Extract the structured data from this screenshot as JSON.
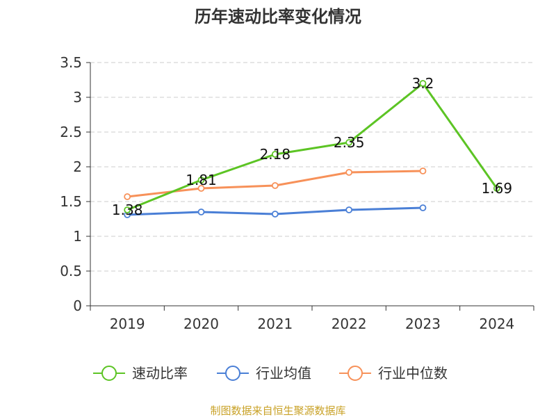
{
  "chart_data": {
    "type": "line",
    "title": "历年速动比率变化情况",
    "categories": [
      "2019",
      "2020",
      "2021",
      "2022",
      "2023",
      "2024"
    ],
    "ylim": [
      0,
      3.5
    ],
    "yticks": [
      "0",
      "0.5",
      "1",
      "1.5",
      "2",
      "2.5",
      "3",
      "3.5"
    ],
    "grid": true,
    "legend_position": "bottom",
    "series": [
      {
        "name": "速动比率",
        "color": "#5cc424",
        "values": [
          1.38,
          1.81,
          2.18,
          2.35,
          3.2,
          1.69
        ],
        "data_labels": [
          "1.38",
          "1.81",
          "2.18",
          "2.35",
          "3.2",
          "1.69"
        ]
      },
      {
        "name": "行业均值",
        "color": "#4a7fd6",
        "values": [
          1.31,
          1.35,
          1.32,
          1.38,
          1.41,
          null
        ]
      },
      {
        "name": "行业中位数",
        "color": "#f79159",
        "values": [
          1.57,
          1.69,
          1.73,
          1.92,
          1.94,
          null
        ]
      }
    ]
  },
  "source": {
    "text": "制图数据来自恒生聚源数据库",
    "color": "#c9a227"
  }
}
